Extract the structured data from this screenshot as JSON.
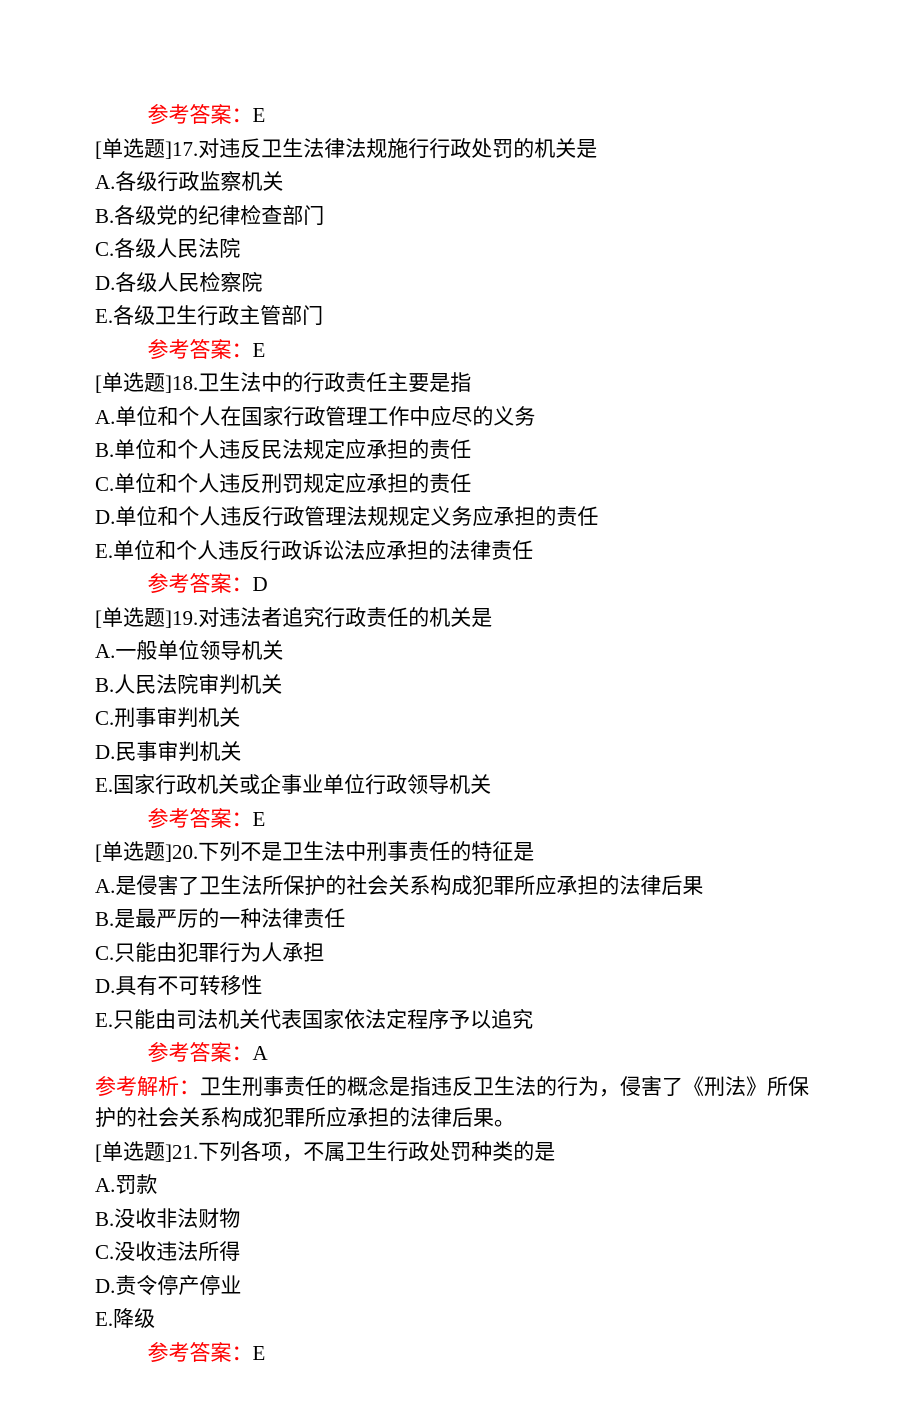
{
  "items": [
    {
      "type": "answer",
      "label": "参考答案：",
      "value": "E"
    },
    {
      "type": "question",
      "text": "[单选题]17.对违反卫生法律法规施行行政处罚的机关是"
    },
    {
      "type": "option",
      "text": "A.各级行政监察机关"
    },
    {
      "type": "option",
      "text": "B.各级党的纪律检查部门"
    },
    {
      "type": "option",
      "text": "C.各级人民法院"
    },
    {
      "type": "option",
      "text": "D.各级人民检察院"
    },
    {
      "type": "option",
      "text": "E.各级卫生行政主管部门"
    },
    {
      "type": "answer",
      "label": "参考答案：",
      "value": "E"
    },
    {
      "type": "question",
      "text": "[单选题]18.卫生法中的行政责任主要是指"
    },
    {
      "type": "option",
      "text": "A.单位和个人在国家行政管理工作中应尽的义务"
    },
    {
      "type": "option",
      "text": "B.单位和个人违反民法规定应承担的责任"
    },
    {
      "type": "option",
      "text": "C.单位和个人违反刑罚规定应承担的责任"
    },
    {
      "type": "option",
      "text": "D.单位和个人违反行政管理法规规定义务应承担的责任"
    },
    {
      "type": "option",
      "text": "E.单位和个人违反行政诉讼法应承担的法律责任"
    },
    {
      "type": "answer",
      "label": "参考答案：",
      "value": "D"
    },
    {
      "type": "question",
      "text": "[单选题]19.对违法者追究行政责任的机关是"
    },
    {
      "type": "option",
      "text": "A.一般单位领导机关"
    },
    {
      "type": "option",
      "text": "B.人民法院审判机关"
    },
    {
      "type": "option",
      "text": "C.刑事审判机关"
    },
    {
      "type": "option",
      "text": "D.民事审判机关"
    },
    {
      "type": "option",
      "text": "E.国家行政机关或企事业单位行政领导机关"
    },
    {
      "type": "answer",
      "label": "参考答案：",
      "value": "E"
    },
    {
      "type": "question",
      "text": "[单选题]20.下列不是卫生法中刑事责任的特征是"
    },
    {
      "type": "option",
      "text": "A.是侵害了卫生法所保护的社会关系构成犯罪所应承担的法律后果"
    },
    {
      "type": "option",
      "text": "B.是最严厉的一种法律责任"
    },
    {
      "type": "option",
      "text": "C.只能由犯罪行为人承担"
    },
    {
      "type": "option",
      "text": "D.具有不可转移性"
    },
    {
      "type": "option",
      "text": "E.只能由司法机关代表国家依法定程序予以追究"
    },
    {
      "type": "answer",
      "label": "参考答案：",
      "value": "A"
    },
    {
      "type": "analysis",
      "label": "参考解析：",
      "text": "卫生刑事责任的概念是指违反卫生法的行为，侵害了《刑法》所保护的社会关系构成犯罪所应承担的法律后果。"
    },
    {
      "type": "question",
      "text": "[单选题]21.下列各项，不属卫生行政处罚种类的是"
    },
    {
      "type": "option",
      "text": "A.罚款"
    },
    {
      "type": "option",
      "text": "B.没收非法财物"
    },
    {
      "type": "option",
      "text": "C.没收违法所得"
    },
    {
      "type": "option",
      "text": "D.责令停产停业"
    },
    {
      "type": "option",
      "text": "E.降级"
    },
    {
      "type": "answer",
      "label": "参考答案：",
      "value": "E"
    }
  ]
}
